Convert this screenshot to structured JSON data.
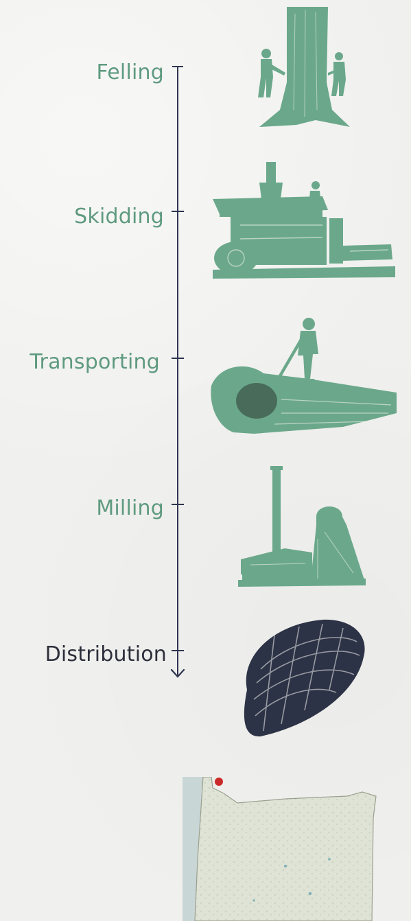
{
  "timeline": {
    "stages": [
      {
        "label": "Felling",
        "illustration": "felling-illustration",
        "color": "#5e9a7f"
      },
      {
        "label": "Skidding",
        "illustration": "skidding-illustration",
        "color": "#5e9a7f"
      },
      {
        "label": "Transporting",
        "illustration": "transporting-illustration",
        "color": "#5e9a7f"
      },
      {
        "label": "Milling",
        "illustration": "milling-illustration",
        "color": "#5e9a7f"
      },
      {
        "label": "Distribution",
        "illustration": "log-bundle-illustration",
        "color": "#2d2f3b"
      }
    ],
    "axis_color": "#2f3550"
  },
  "map": {
    "icon": "oregon-map",
    "marker_color": "#cc2a2a"
  }
}
